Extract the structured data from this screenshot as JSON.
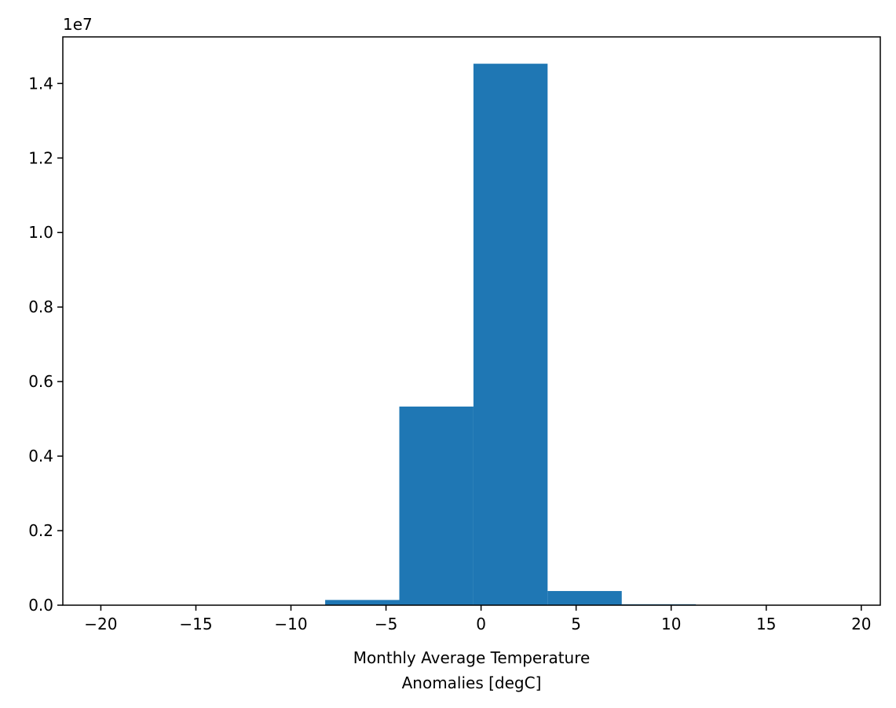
{
  "chart_data": {
    "type": "bar",
    "subtype": "histogram",
    "title": "",
    "xlabel_lines": [
      "Monthly Average Temperature",
      "Anomalies [degC]"
    ],
    "ylabel": "",
    "y_offset_label": "1e7",
    "y_scale": 10000000,
    "xlim": [
      -22.0,
      21.0
    ],
    "ylim": [
      0,
      15250000
    ],
    "xticks": [
      -20,
      -15,
      -10,
      -5,
      0,
      5,
      10,
      15,
      20
    ],
    "xtick_labels": [
      "−20",
      "−15",
      "−10",
      "−5",
      "0",
      "5",
      "10",
      "15",
      "20"
    ],
    "yticks": [
      0,
      2000000,
      4000000,
      6000000,
      8000000,
      10000000,
      12000000,
      14000000
    ],
    "ytick_labels": [
      "0.0",
      "0.2",
      "0.4",
      "0.6",
      "0.8",
      "1.0",
      "1.2",
      "1.4"
    ],
    "grid": false,
    "bar_color": "#1f77b4",
    "bins": [
      {
        "x0": -19.9,
        "x1": -16.0,
        "value": 0
      },
      {
        "x0": -16.0,
        "x1": -12.1,
        "value": 0
      },
      {
        "x0": -12.1,
        "x1": -8.2,
        "value": 2000
      },
      {
        "x0": -8.2,
        "x1": -4.3,
        "value": 140000
      },
      {
        "x0": -4.3,
        "x1": -0.4,
        "value": 5330000
      },
      {
        "x0": -0.4,
        "x1": 3.5,
        "value": 14530000
      },
      {
        "x0": 3.5,
        "x1": 7.4,
        "value": 380000
      },
      {
        "x0": 7.4,
        "x1": 11.3,
        "value": 25000
      },
      {
        "x0": 11.3,
        "x1": 15.2,
        "value": 1000
      },
      {
        "x0": 15.2,
        "x1": 19.1,
        "value": 0
      }
    ]
  }
}
